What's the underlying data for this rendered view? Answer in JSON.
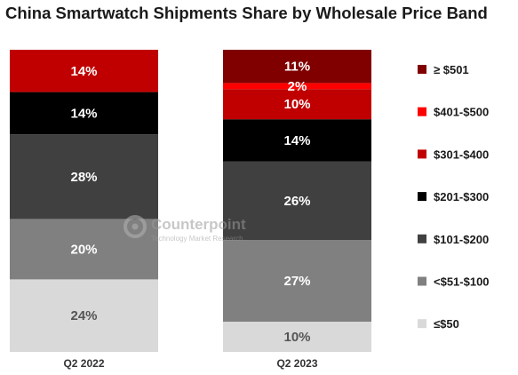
{
  "chart_data": {
    "type": "bar",
    "stacked": true,
    "title": "China Smartwatch Shipments Share by Wholesale Price Band",
    "categories": [
      "Q2 2022",
      "Q2 2023"
    ],
    "series": [
      {
        "name": "≤$50",
        "color": "#d9d9d9",
        "values": [
          24,
          10
        ]
      },
      {
        "name": "<$51-$100",
        "color": "#808080",
        "values": [
          20,
          27
        ]
      },
      {
        "name": "$101-$200",
        "color": "#404040",
        "values": [
          28,
          26
        ]
      },
      {
        "name": "$201-$300",
        "color": "#000000",
        "values": [
          14,
          14
        ]
      },
      {
        "name": "$301-$400",
        "color": "#c00000",
        "values": [
          14,
          10
        ]
      },
      {
        "name": "$401-$500",
        "color": "#ff0000",
        "values": [
          0,
          2
        ]
      },
      {
        "name": "≥ $501",
        "color": "#800000",
        "values": [
          0,
          11
        ]
      }
    ],
    "value_labels": [
      [
        "24%",
        "20%",
        "28%",
        "14%",
        "14%",
        "",
        ""
      ],
      [
        "10%",
        "27%",
        "26%",
        "14%",
        "10%",
        "2%",
        "11%"
      ]
    ],
    "ylim": [
      0,
      100
    ],
    "grid": false,
    "legend_position": "right",
    "legend_order": [
      "≥ $501",
      "$401-$500",
      "$301-$400",
      "$201-$300",
      "$101-$200",
      "<$51-$100",
      "≤$50"
    ]
  },
  "watermark": {
    "brand": "Counterpoint",
    "tagline": "Technology Market Research"
  }
}
